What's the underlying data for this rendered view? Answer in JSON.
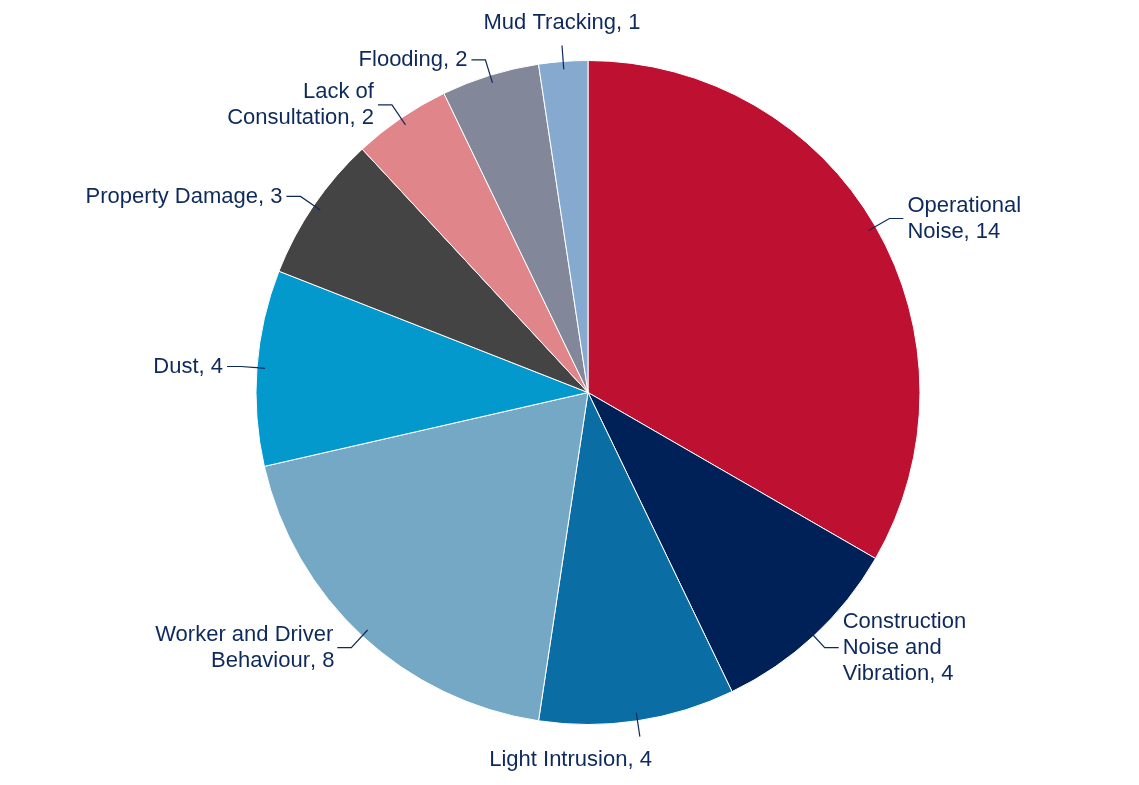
{
  "chart_data": {
    "type": "pie",
    "categories": [
      "Operational Noise",
      "Construction Noise and Vibration",
      "Light Intrusion",
      "Worker and Driver Behaviour",
      "Dust",
      "Property Damage",
      "Lack of Consultation",
      "Flooding",
      "Mud Tracking"
    ],
    "values": [
      14,
      4,
      4,
      8,
      4,
      3,
      2,
      2,
      1
    ],
    "colors": [
      "#be1131",
      "#002157",
      "#0a6da4",
      "#74a8c5",
      "#0399cd",
      "#444444",
      "#e0868a",
      "#828899",
      "#85a9cf"
    ],
    "value_labels": [
      ", 14",
      ", 4",
      ", 4",
      ", 8",
      ", 4",
      ", 3",
      ", 2",
      ", 2",
      ", 1"
    ],
    "legend": false
  }
}
